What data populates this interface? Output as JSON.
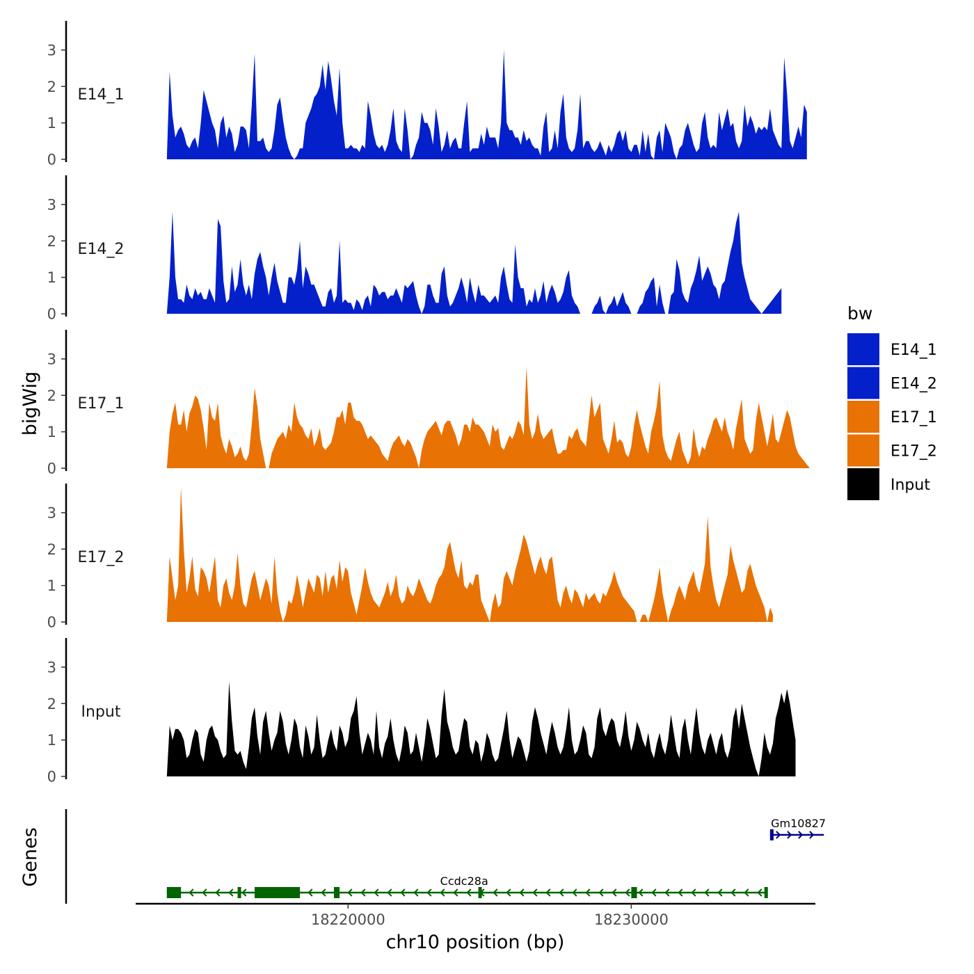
{
  "chart_data": {
    "type": "area",
    "ylabel": "bigWig",
    "genes_label": "Genes",
    "xlabel": "chr10 position (bp)",
    "x_range": [
      18212500,
      18236500
    ],
    "x_ticks": [
      {
        "value": 18220000,
        "label": "18220000"
      },
      {
        "value": 18230000,
        "label": "18230000"
      }
    ],
    "ylim": [
      0,
      3.8
    ],
    "y_ticks": [
      0,
      1,
      2,
      3
    ],
    "legend": {
      "title": "bw",
      "entries": [
        {
          "label": "E14_1",
          "color": "#0320CB"
        },
        {
          "label": "E14_2",
          "color": "#0320CB"
        },
        {
          "label": "E17_1",
          "color": "#E87203"
        },
        {
          "label": "E17_2",
          "color": "#E87203"
        },
        {
          "label": "Input",
          "color": "#000000"
        }
      ]
    },
    "bin_start": 18213600,
    "bin_size": 100,
    "tracks": [
      {
        "name": "E14_1",
        "color": "#0320CB",
        "values": [
          0,
          2.4,
          1.2,
          0.6,
          0.8,
          0.9,
          0.7,
          0.4,
          0.3,
          0.5,
          0.6,
          0.3,
          1.0,
          1.9,
          1.6,
          1.3,
          1.0,
          0.8,
          0.3,
          1.0,
          1.2,
          0.6,
          0.9,
          0.7,
          0.2,
          0.4,
          0.9,
          0.9,
          0.8,
          0.3,
          1.5,
          2.9,
          0.5,
          0.5,
          0.6,
          0.3,
          0.2,
          0.3,
          0.8,
          1.5,
          1.7,
          1.1,
          0.6,
          0.3,
          0.1,
          0,
          0.1,
          0.3,
          0.3,
          1.0,
          1.2,
          1.4,
          1.7,
          1.8,
          2.0,
          2.6,
          1.9,
          2.7,
          2.2,
          1.6,
          1.2,
          2.5,
          1.0,
          0.3,
          0.3,
          0.4,
          0.3,
          0.3,
          0.2,
          0.4,
          0.3,
          1.6,
          1.2,
          0.7,
          0.4,
          0.3,
          0.4,
          0.2,
          0.4,
          0.8,
          1.4,
          0.5,
          0.3,
          0.2,
          1.4,
          0.8,
          0,
          0.1,
          0.4,
          0.6,
          1.3,
          1.0,
          1.0,
          0.8,
          0.4,
          1.4,
          0.9,
          0.2,
          0.4,
          0.8,
          0.3,
          0.5,
          0.6,
          0.3,
          0.3,
          1.0,
          1.6,
          0.2,
          0.3,
          0.3,
          0.3,
          0.7,
          0.4,
          0.9,
          0.6,
          0.6,
          0.6,
          0.3,
          1.0,
          3.0,
          1.0,
          0.8,
          0.8,
          0.6,
          0.6,
          0.4,
          0.8,
          0.5,
          0.6,
          0.4,
          0.3,
          0.3,
          0.1,
          0.9,
          1.3,
          0.2,
          0.3,
          0.8,
          0.3,
          1.3,
          1.8,
          0.6,
          0.3,
          0.2,
          0.3,
          0.8,
          1.8,
          0.3,
          0.5,
          0.5,
          0.3,
          0.2,
          0.3,
          0.5,
          0.3,
          0.1,
          0.4,
          0.2,
          0.4,
          0.7,
          0.8,
          0.5,
          0.8,
          0.3,
          0.2,
          0.4,
          0.4,
          0.1,
          0.8,
          0.2,
          0.7,
          0.1,
          0,
          0.6,
          0.8,
          0.2,
          1.0,
          0.8,
          0.6,
          0.2,
          0,
          0.3,
          0.4,
          0.8,
          1.0,
          0.7,
          0.4,
          0.2,
          0.3,
          1.0,
          1.3,
          0.6,
          0.3,
          0.4,
          0.3,
          1.3,
          0.8,
          1.1,
          1.4,
          0.9,
          1.0,
          0.5,
          0.3,
          0.5,
          1.5,
          0.9,
          1.2,
          1.0,
          0.7,
          0.9,
          0.8,
          0.9,
          0.8,
          1.4,
          0.8,
          0.6,
          0.4,
          0.3,
          2.8,
          1.8,
          0.5,
          0.3,
          0.6,
          0.9,
          0.6,
          1.5,
          1.3
        ]
      },
      {
        "name": "E14_2",
        "color": "#0320CB",
        "values": [
          0,
          1.0,
          2.8,
          1.0,
          0.4,
          0.4,
          0.3,
          0.8,
          0.5,
          0.4,
          0.7,
          0.5,
          0.6,
          0.4,
          0.4,
          0.7,
          0.5,
          0.3,
          2.6,
          2.4,
          0.9,
          0.3,
          0.4,
          1.3,
          0.6,
          0.8,
          1.5,
          0.8,
          0.5,
          0.8,
          0.4,
          1.1,
          1.5,
          1.7,
          1.3,
          1.0,
          0.5,
          1.0,
          1.4,
          0.9,
          0.6,
          0.3,
          0.3,
          1.0,
          1.0,
          0.8,
          1.2,
          2.0,
          0.7,
          1.3,
          1.1,
          0.8,
          0.8,
          0.6,
          0.4,
          0.2,
          0.2,
          0.6,
          0.7,
          0.3,
          0.5,
          2.0,
          0.3,
          0.4,
          0.3,
          0.3,
          0.1,
          0.4,
          0.3,
          0.1,
          0.4,
          0.5,
          0.2,
          0.8,
          0.7,
          0.5,
          0.6,
          0.6,
          0.4,
          0.5,
          0.5,
          0.7,
          0.5,
          0.3,
          0.8,
          0.7,
          0.8,
          0.9,
          0.5,
          0.2,
          0,
          0.2,
          0.8,
          0.8,
          0.5,
          0.3,
          0.3,
          1.1,
          1.3,
          0.5,
          0.2,
          0.3,
          0.5,
          0.7,
          1.0,
          0.7,
          0.3,
          1.0,
          0.6,
          0.3,
          0.8,
          0.5,
          0.5,
          0.4,
          0.3,
          0.4,
          0.5,
          0.3,
          1.0,
          1.3,
          0.8,
          0.4,
          0.3,
          1.9,
          1.0,
          0.7,
          0.7,
          0.2,
          0.4,
          0.3,
          0.7,
          0.3,
          0.5,
          0.9,
          0.3,
          0.6,
          0.8,
          0.6,
          0.3,
          0.4,
          0.6,
          1.0,
          1.2,
          0.5,
          0.3,
          0.2,
          0,
          0,
          0,
          0,
          0,
          0.2,
          0.3,
          0.5,
          0.1,
          0,
          0.2,
          0.3,
          0.5,
          0.2,
          0.4,
          0.6,
          0.3,
          0.2,
          0,
          0,
          0,
          0.2,
          0.3,
          0.6,
          0.7,
          0.9,
          1.0,
          0.2,
          0.8,
          0.3,
          0,
          0,
          0.5,
          0.6,
          1.5,
          1.2,
          0.6,
          0.4,
          0.3,
          0.7,
          0.9,
          1.2,
          1.6,
          0.9,
          1.1,
          1.3,
          1.1,
          0.8,
          0.7,
          0.4,
          0.8,
          0.9,
          1.3,
          1.7,
          2.0,
          2.5,
          2.8,
          1.4,
          1.0,
          0.7,
          0.4,
          0.3,
          0.2,
          0.1,
          0,
          0.1,
          0.2,
          0.3,
          0.4,
          0.5,
          0.6,
          0.7
        ]
      },
      {
        "name": "E17_1",
        "color": "#E87203",
        "values": [
          0,
          1.0,
          1.5,
          1.8,
          1.2,
          1.2,
          1.6,
          1.0,
          1.5,
          1.7,
          2.0,
          1.9,
          1.6,
          1.1,
          0.5,
          1.8,
          1.4,
          1.3,
          1.8,
          0.9,
          0.6,
          0.4,
          0.8,
          0.6,
          0.3,
          0.4,
          0.6,
          0.3,
          0.2,
          0.4,
          1.2,
          2.2,
          1.7,
          0.8,
          0.4,
          0,
          0,
          0.4,
          0.6,
          0.8,
          0.9,
          1.0,
          0.8,
          1.2,
          1.0,
          1.8,
          1.4,
          1.2,
          1.1,
          0.9,
          0.8,
          1.1,
          0.6,
          0.8,
          1.1,
          0.6,
          0.5,
          0.6,
          0.7,
          1.0,
          1.4,
          1.4,
          1.6,
          1.2,
          1.8,
          1.8,
          1.4,
          1.3,
          1.3,
          1.2,
          1.0,
          0.8,
          0.9,
          0.8,
          0.7,
          0.6,
          0.4,
          0.3,
          0.2,
          0.5,
          0.7,
          0.8,
          0.9,
          0.7,
          0.6,
          0.8,
          0.7,
          0.5,
          0.3,
          0,
          0.5,
          0.8,
          1.0,
          1.1,
          1.2,
          1.3,
          1.1,
          0.9,
          1.2,
          1.3,
          1.3,
          1.1,
          0.9,
          0.6,
          0.8,
          1.2,
          1.2,
          1.0,
          1.4,
          1.2,
          1.2,
          1.1,
          1.0,
          0.8,
          0.6,
          1.2,
          1.0,
          1.1,
          0.6,
          0.5,
          0.7,
          0.9,
          0.8,
          1.0,
          1.3,
          1.2,
          0.9,
          2.8,
          1.2,
          0.8,
          1.0,
          1.5,
          1.0,
          0.8,
          0.9,
          1.0,
          1.1,
          0.7,
          0.4,
          0.4,
          0.5,
          0.5,
          0.9,
          0.8,
          1.0,
          1.1,
          0.8,
          0.7,
          0.6,
          1.3,
          2.0,
          1.4,
          1.6,
          1.8,
          0.8,
          0.6,
          0.4,
          0.8,
          1.3,
          0.7,
          0.8,
          0.7,
          0.4,
          0.3,
          0.6,
          1.2,
          1.6,
          1.2,
          0.9,
          0.6,
          0.4,
          1.0,
          1.3,
          1.7,
          2.4,
          0.9,
          0.5,
          0.3,
          0.2,
          0.5,
          0.8,
          1.0,
          0.5,
          0.3,
          0.1,
          0.3,
          1.1,
          0.6,
          0.3,
          0.6,
          0.5,
          0.8,
          1.0,
          1.3,
          1.4,
          1.2,
          1.0,
          1.4,
          1.0,
          0.8,
          0.5,
          1.1,
          1.5,
          1.9,
          0.8,
          0.6,
          0.4,
          0.5,
          1.3,
          1.8,
          1.4,
          1.0,
          0.6,
          1.0,
          1.5,
          0.8,
          0.7,
          1.0,
          1.3,
          1.6,
          1.4,
          1.0,
          0.6,
          0.4,
          0.3,
          0.2,
          0.1,
          0
        ]
      },
      {
        "name": "E17_2",
        "color": "#E87203",
        "values": [
          0,
          1.8,
          1.2,
          0.6,
          1.0,
          3.7,
          2.0,
          0.8,
          1.2,
          1.8,
          0.9,
          0.7,
          1.5,
          1.4,
          1.2,
          0.8,
          1.3,
          1.8,
          0.6,
          0.4,
          1.0,
          1.2,
          0.8,
          0.6,
          1.0,
          1.9,
          1.0,
          0.5,
          0.4,
          0.8,
          1.2,
          1.4,
          1.0,
          0.6,
          0.9,
          1.2,
          1.0,
          0.5,
          1.8,
          0.8,
          0.3,
          0,
          0.2,
          0.6,
          0.5,
          0.8,
          1.3,
          0.9,
          0.4,
          0.8,
          1.2,
          1.0,
          0.8,
          1.3,
          1.2,
          0.7,
          1.4,
          0.8,
          1.2,
          1.3,
          0.9,
          1.7,
          1.1,
          1.5,
          1.4,
          0.8,
          0.5,
          0.2,
          0.6,
          1.0,
          1.5,
          1.1,
          0.8,
          0.6,
          0.5,
          0.4,
          0.6,
          0.8,
          1.1,
          0.7,
          0.9,
          1.3,
          0.7,
          0.5,
          0.6,
          1.0,
          0.8,
          0.7,
          0.9,
          1.2,
          1.0,
          0.8,
          0.6,
          0.5,
          0.7,
          1.0,
          1.2,
          1.3,
          1.5,
          2.0,
          2.2,
          1.8,
          1.4,
          1.2,
          1.7,
          1.0,
          0.9,
          1.1,
          1.0,
          1.3,
          1.3,
          0.6,
          0.4,
          0.2,
          0,
          0.5,
          0.8,
          0.4,
          0.5,
          1.2,
          1.4,
          1.2,
          1.0,
          1.4,
          1.7,
          2.0,
          2.4,
          2.2,
          1.9,
          1.6,
          1.3,
          1.6,
          1.8,
          1.5,
          1.3,
          1.7,
          1.8,
          1.2,
          0.6,
          0.4,
          0.8,
          1.0,
          0.7,
          0.5,
          0.9,
          0.8,
          0.6,
          0.4,
          0.8,
          0.6,
          0.7,
          0.8,
          0.6,
          0.5,
          0.8,
          0.7,
          0.9,
          1.1,
          1.4,
          1.1,
          0.9,
          0.7,
          0.6,
          0.5,
          0.4,
          0.3,
          0,
          0,
          0.2,
          0.2,
          0,
          0.3,
          0.6,
          1.0,
          1.5,
          0.8,
          0.4,
          0,
          0.3,
          0.5,
          0.8,
          1.0,
          0.8,
          0.6,
          1.0,
          1.2,
          1.4,
          1.0,
          0.8,
          1.2,
          1.6,
          2.9,
          1.5,
          1.0,
          0.6,
          0.4,
          0.7,
          1.0,
          1.3,
          2.1,
          1.7,
          1.4,
          1.1,
          0.8,
          0.9,
          1.4,
          1.6,
          1.3,
          1.0,
          0.8,
          0.6,
          0.4,
          0,
          0.4,
          0.2
        ]
      },
      {
        "name": "Input",
        "color": "#000000",
        "values": [
          0,
          1.4,
          1.0,
          1.3,
          1.3,
          1.2,
          1.0,
          0.5,
          0.6,
          1.0,
          1.3,
          1.2,
          0.6,
          0.4,
          1.0,
          1.3,
          1.4,
          1.1,
          1.0,
          0.7,
          0.5,
          0.6,
          2.6,
          1.5,
          0.7,
          0.6,
          0.7,
          0.4,
          0.2,
          0.8,
          1.6,
          1.9,
          1.1,
          0.6,
          1.5,
          1.8,
          1.2,
          0.7,
          1.0,
          1.2,
          1.8,
          1.5,
          0.9,
          0.6,
          1.0,
          1.6,
          1.4,
          0.8,
          0.5,
          1.4,
          1.1,
          0.6,
          0.8,
          1.7,
          1.0,
          0.5,
          0.6,
          1.0,
          1.3,
          0.9,
          0.7,
          1.4,
          1.2,
          0.8,
          1.0,
          1.6,
          1.8,
          2.2,
          1.2,
          0.6,
          0.9,
          1.2,
          1.0,
          0.6,
          1.8,
          0.8,
          0.5,
          0.9,
          1.1,
          1.6,
          1.0,
          0.6,
          0.4,
          0.8,
          1.4,
          1.2,
          0.6,
          0.7,
          1.2,
          0.8,
          0.4,
          0.9,
          1.6,
          1.3,
          0.9,
          0.5,
          0.6,
          1.7,
          2.4,
          1.5,
          1.2,
          0.8,
          0.6,
          0.7,
          1.2,
          1.6,
          1.5,
          0.8,
          0.6,
          1.0,
          0.9,
          0.4,
          0.7,
          1.2,
          1.0,
          0.6,
          0.4,
          0.5,
          0.9,
          1.3,
          1.8,
          1.0,
          0.5,
          0.8,
          1.1,
          1.0,
          0.7,
          0.4,
          0.7,
          1.5,
          1.9,
          1.6,
          1.2,
          0.9,
          0.6,
          1.1,
          1.5,
          1.2,
          0.8,
          0.6,
          0.8,
          1.3,
          1.9,
          1.0,
          0.6,
          0.7,
          1.0,
          1.4,
          1.2,
          0.6,
          0.5,
          0.8,
          1.6,
          1.9,
          1.3,
          1.1,
          1.4,
          1.6,
          1.5,
          1.0,
          0.8,
          1.2,
          1.8,
          1.1,
          0.7,
          1.0,
          1.5,
          1.3,
          1.0,
          0.8,
          1.2,
          0.7,
          0.5,
          0.9,
          1.2,
          0.8,
          0.6,
          1.0,
          1.7,
          1.2,
          0.7,
          0.5,
          1.3,
          1.6,
          1.0,
          0.6,
          1.3,
          1.9,
          1.2,
          0.8,
          0.6,
          1.0,
          1.2,
          0.9,
          0.6,
          1.0,
          1.2,
          0.7,
          0.5,
          0.8,
          1.6,
          1.9,
          1.3,
          2.0,
          1.6,
          1.2,
          0.8,
          0.5,
          0.2,
          0,
          0.5,
          1.2,
          0.8,
          0.6,
          0.9,
          1.6,
          1.9,
          2.3,
          2.0,
          2.4,
          2.0,
          1.5,
          1.0
        ]
      }
    ],
    "genes": [
      {
        "name": "Ccdc28a",
        "strand": "-",
        "color": "#006400",
        "label_x": 18224100,
        "start": 18213600,
        "end": 18234800,
        "exons": [
          [
            18213600,
            18214100
          ],
          [
            18216100,
            18216200
          ],
          [
            18216700,
            18218300
          ],
          [
            18219500,
            18219700
          ],
          [
            18224600,
            18224700
          ],
          [
            18230000,
            18230200
          ],
          [
            18234700,
            18234800
          ]
        ]
      },
      {
        "name": "Gm10827",
        "strand": "+",
        "color": "#00008B",
        "label_x": 18235900,
        "start": 18234900,
        "end": 18236800,
        "exons": [
          [
            18234900,
            18235000
          ]
        ]
      }
    ]
  }
}
